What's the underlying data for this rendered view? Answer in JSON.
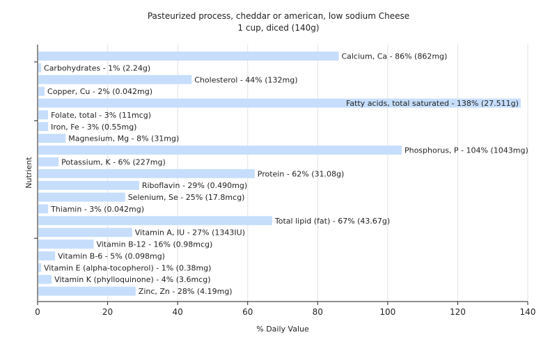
{
  "chart_data": {
    "type": "bar",
    "orientation": "horizontal",
    "title": "Pasteurized process, cheddar or american, low sodium Cheese",
    "subtitle": "1 cup, diced (140g)",
    "xlabel": "% Daily Value",
    "ylabel": "Nutrient",
    "xlim": [
      0,
      140
    ],
    "xticks": [
      0,
      20,
      40,
      60,
      80,
      100,
      120,
      140
    ],
    "grid": true,
    "bar_color": "#c6defc",
    "grid_color": "#e3e3e3",
    "categories": [
      "Calcium, Ca",
      "Carbohydrates",
      "Cholesterol",
      "Copper, Cu",
      "Fatty acids, total saturated",
      "Folate, total",
      "Iron, Fe",
      "Magnesium, Mg",
      "Phosphorus, P",
      "Potassium, K",
      "Protein",
      "Riboflavin",
      "Selenium, Se",
      "Thiamin",
      "Total lipid (fat)",
      "Vitamin A, IU",
      "Vitamin B-12",
      "Vitamin B-6",
      "Vitamin E (alpha-tocopherol)",
      "Vitamin K (phylloquinone)",
      "Zinc, Zn"
    ],
    "values": [
      86,
      1,
      44,
      2,
      138,
      3,
      3,
      8,
      104,
      6,
      62,
      29,
      25,
      3,
      67,
      27,
      16,
      5,
      1,
      4,
      28
    ],
    "labels": [
      "Calcium, Ca - 86% (862mg)",
      "Carbohydrates - 1% (2.24g)",
      "Cholesterol - 44% (132mg)",
      "Copper, Cu - 2% (0.042mg)",
      "Fatty acids, total saturated - 138% (27.511g)",
      "Folate, total - 3% (11mcg)",
      "Iron, Fe - 3% (0.55mg)",
      "Magnesium, Mg - 8% (31mg)",
      "Phosphorus, P - 104% (1043mg)",
      "Potassium, K - 6% (227mg)",
      "Protein - 62% (31.08g)",
      "Riboflavin - 29% (0.490mg)",
      "Selenium, Se - 25% (17.8mcg)",
      "Thiamin - 3% (0.042mg)",
      "Total lipid (fat) - 67% (43.67g)",
      "Vitamin A, IU - 27% (1343IU)",
      "Vitamin B-12 - 16% (0.98mcg)",
      "Vitamin B-6 - 5% (0.098mg)",
      "Vitamin E (alpha-tocopherol) - 1% (0.38mg)",
      "Vitamin K (phylloquinone) - 4% (3.6mcg)",
      "Zinc, Zn - 28% (4.19mg)"
    ]
  }
}
